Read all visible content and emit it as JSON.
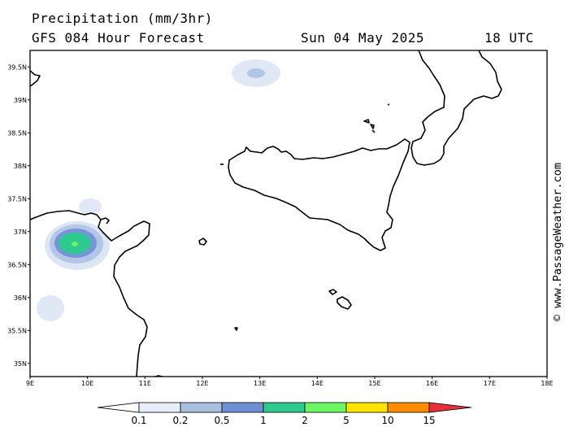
{
  "header": {
    "title": "Precipitation (mm/3hr)",
    "subtitle": "GFS 084 Hour Forecast",
    "date": "Sun 04 May 2025",
    "time": "18 UTC"
  },
  "map": {
    "lat_labels": [
      "39.5N",
      "39N",
      "38.5N",
      "38N",
      "37.5N",
      "37N",
      "36.5N",
      "36N",
      "35.5N",
      "35N"
    ],
    "lon_labels": [
      "9E",
      "10E",
      "11E",
      "12E",
      "13E",
      "14E",
      "15E",
      "16E",
      "17E",
      "18E"
    ],
    "lat_range": [
      34.8,
      39.75
    ],
    "lon_range": [
      9,
      18
    ]
  },
  "legend": {
    "labels": [
      "0.1",
      "0.2",
      "0.5",
      "1",
      "2",
      "5",
      "10",
      "15"
    ],
    "colors": [
      "#ffffff",
      "#e8eef8",
      "#a9bfe0",
      "#6d8fd3",
      "#2ec98f",
      "#6af760",
      "#ffe400",
      "#ff8c00",
      "#e8303a"
    ]
  },
  "credit": "© www.PassageWeather.com",
  "precip_colors": {
    "light": "#e1e8f5",
    "mid": "#b3c6e8",
    "blue": "#7495d8",
    "green": "#2ec98f",
    "bright": "#6af760"
  }
}
